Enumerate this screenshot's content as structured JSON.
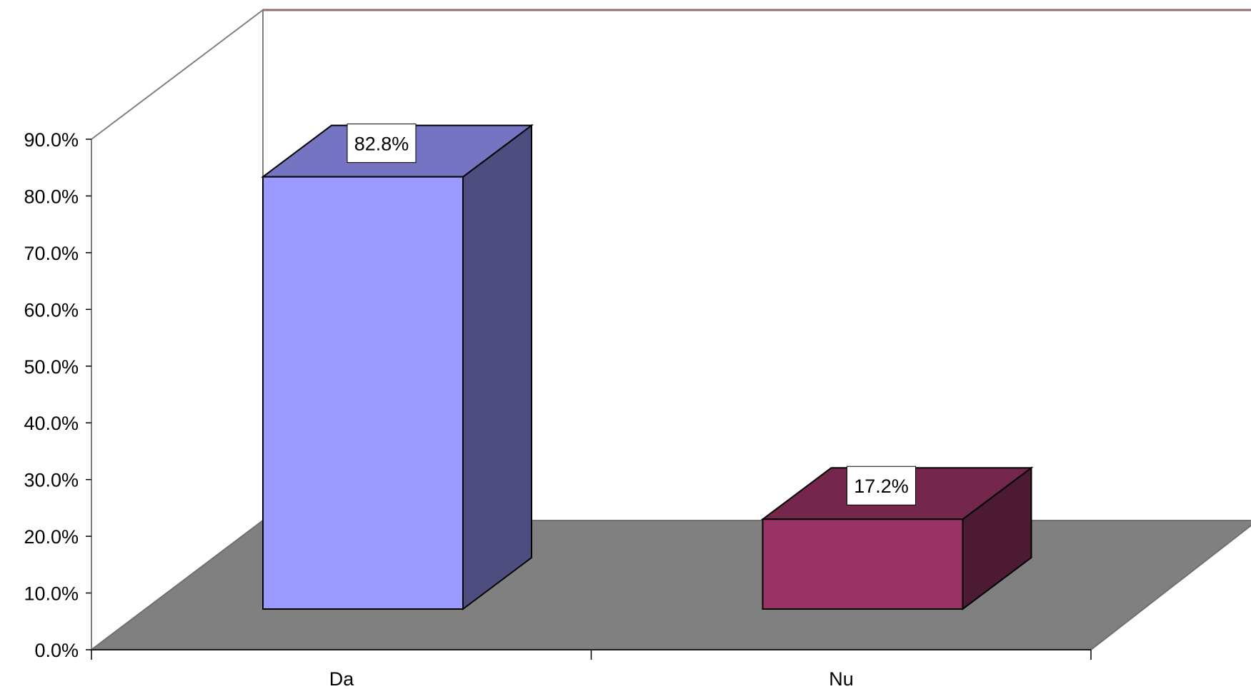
{
  "chart_data": {
    "type": "bar",
    "categories": [
      "Da",
      "Nu"
    ],
    "values": [
      82.8,
      17.2
    ],
    "data_labels": [
      "82.8%",
      "17.2%"
    ],
    "y_ticks": [
      "0.0%",
      "10.0%",
      "20.0%",
      "30.0%",
      "40.0%",
      "50.0%",
      "60.0%",
      "70.0%",
      "80.0%",
      "90.0%"
    ],
    "ylim": [
      0,
      90
    ],
    "title": "",
    "xlabel": "",
    "ylabel": "",
    "three_d": true,
    "grid": false,
    "legend": "none",
    "colors": {
      "bars": [
        "#9999ff",
        "#993366"
      ],
      "bar_tops": [
        "#7474c2",
        "#74264d"
      ],
      "bar_sides": [
        "#4d4d80",
        "#4d1a33"
      ],
      "floor": "#808080",
      "walls": "#ffffff"
    }
  }
}
